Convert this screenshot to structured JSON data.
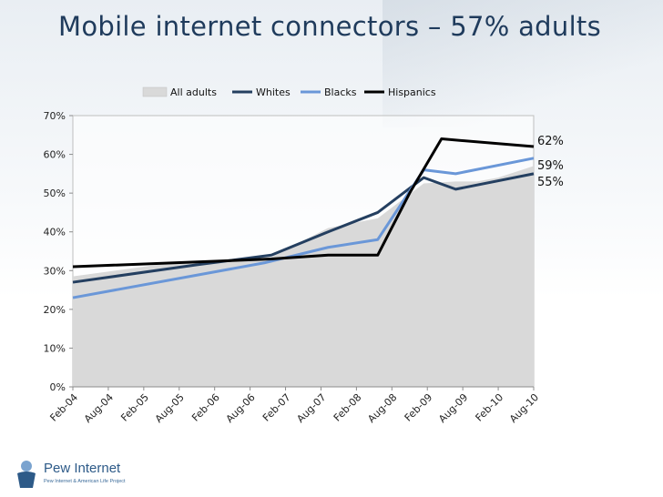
{
  "slide": {
    "title": "Mobile internet connectors – 57% adults"
  },
  "logo": {
    "name": "Pew Internet",
    "tagline": "Pew Internet & American Life Project"
  },
  "colors": {
    "area": "#d9d9d9",
    "whites": "#243f60",
    "blacks": "#6a97d8",
    "hispanics": "#000000",
    "title": "#1f3b5c"
  },
  "chart_data": {
    "type": "line",
    "title": "",
    "xlabel": "",
    "ylabel": "",
    "ylim": [
      0,
      70
    ],
    "y_ticks": [
      "0%",
      "10%",
      "20%",
      "30%",
      "40%",
      "50%",
      "60%",
      "70%"
    ],
    "x_tick_labels": [
      "Feb-04",
      "Aug-04",
      "Feb-05",
      "Aug-05",
      "Feb-06",
      "Aug-06",
      "Feb-07",
      "Aug-07",
      "Feb-08",
      "Aug-08",
      "Feb-09",
      "Aug-09",
      "Feb-10",
      "Aug-10"
    ],
    "x_range": [
      0,
      13
    ],
    "legend_position": "top",
    "series": [
      {
        "name": "All adults",
        "kind": "area",
        "color": "#d9d9d9",
        "points": [
          [
            0,
            28.5
          ],
          [
            2.8,
            32
          ],
          [
            5.6,
            33.5
          ],
          [
            7.2,
            41
          ],
          [
            8.6,
            43.5
          ],
          [
            9.9,
            52.5
          ],
          [
            10.8,
            53
          ],
          [
            11.4,
            53
          ],
          [
            12.0,
            54
          ],
          [
            13.0,
            57
          ]
        ]
      },
      {
        "name": "Whites",
        "kind": "line",
        "color": "#243f60",
        "points": [
          [
            0,
            27
          ],
          [
            3.5,
            31.5
          ],
          [
            5.6,
            34
          ],
          [
            7.2,
            40
          ],
          [
            8.6,
            45
          ],
          [
            9.9,
            54
          ],
          [
            10.8,
            51
          ],
          [
            13.0,
            55
          ]
        ]
      },
      {
        "name": "Blacks",
        "kind": "line",
        "color": "#6a97d8",
        "points": [
          [
            0,
            23
          ],
          [
            5.4,
            32
          ],
          [
            7.2,
            36
          ],
          [
            8.6,
            38
          ],
          [
            9.9,
            56
          ],
          [
            10.8,
            55
          ],
          [
            13.0,
            59
          ]
        ]
      },
      {
        "name": "Hispanics",
        "kind": "line",
        "color": "#000000",
        "points": [
          [
            0,
            31
          ],
          [
            5.6,
            33
          ],
          [
            7.2,
            34
          ],
          [
            8.6,
            34
          ],
          [
            9.5,
            50
          ],
          [
            10.4,
            64
          ],
          [
            13.0,
            62
          ]
        ]
      }
    ],
    "end_labels": [
      {
        "series": "Hispanics",
        "text": "62%",
        "y": 62
      },
      {
        "series": "Blacks",
        "text": "59%",
        "y": 59
      },
      {
        "series": "Whites",
        "text": "55%",
        "y": 55
      }
    ]
  }
}
